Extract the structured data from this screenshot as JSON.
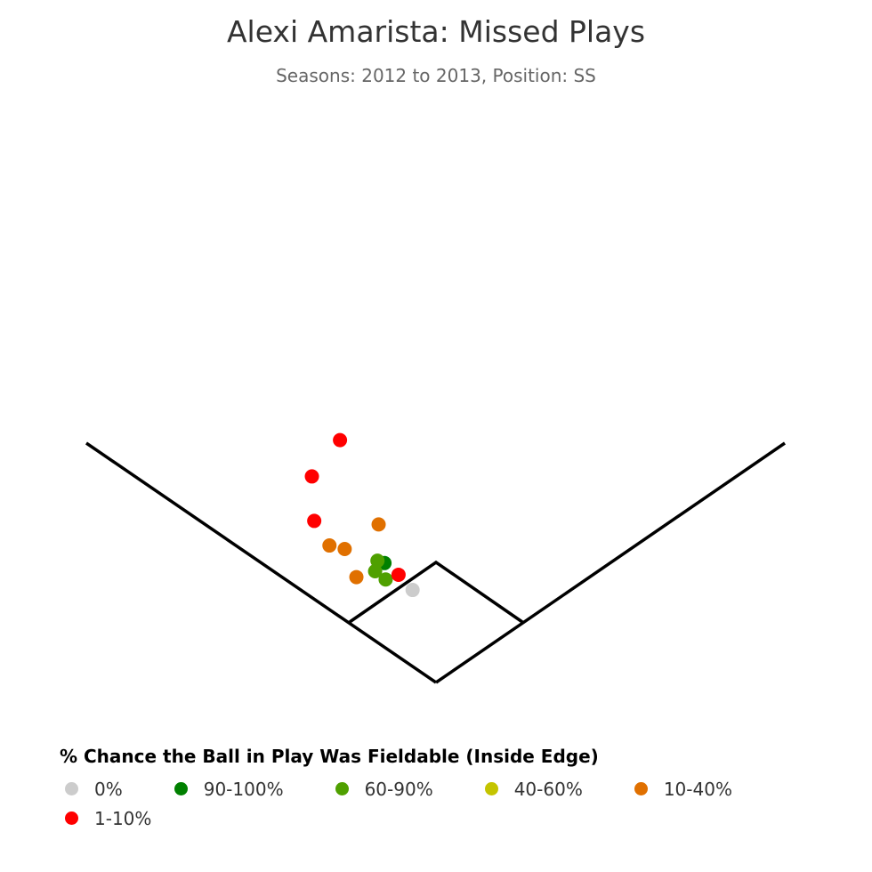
{
  "chart_data": {
    "type": "scatter",
    "title": "Alexi Amarista: Missed Plays",
    "subtitle": "Seasons: 2012 to 2013, Position: SS",
    "legend_title": "% Chance the Ball in Play Was Fieldable (Inside Edge)",
    "legend_placement": "bottom-left",
    "grid": false,
    "categories": [
      {
        "label": "0%",
        "color": "#cccccc"
      },
      {
        "label": "90-100%",
        "color": "#008000"
      },
      {
        "label": "60-90%",
        "color": "#4fa000"
      },
      {
        "label": "40-60%",
        "color": "#c4c400"
      },
      {
        "label": "10-40%",
        "color": "#e07000"
      },
      {
        "label": "1-10%",
        "color": "#ff0000"
      }
    ],
    "points": [
      {
        "x": -82,
        "y": 207,
        "category": "1-10%"
      },
      {
        "x": -106,
        "y": 176,
        "category": "1-10%"
      },
      {
        "x": -104,
        "y": 138,
        "category": "1-10%"
      },
      {
        "x": -49,
        "y": 135,
        "category": "10-40%"
      },
      {
        "x": -91,
        "y": 117,
        "category": "10-40%"
      },
      {
        "x": -78,
        "y": 114,
        "category": "10-40%"
      },
      {
        "x": -68,
        "y": 90,
        "category": "10-40%"
      },
      {
        "x": -44,
        "y": 102,
        "category": "90-100%"
      },
      {
        "x": -50,
        "y": 104,
        "category": "60-90%"
      },
      {
        "x": -52,
        "y": 95,
        "category": "60-90%"
      },
      {
        "x": -43,
        "y": 88,
        "category": "60-90%"
      },
      {
        "x": -32,
        "y": 92,
        "category": "1-10%"
      },
      {
        "x": -20,
        "y": 79,
        "category": "0%"
      }
    ]
  }
}
